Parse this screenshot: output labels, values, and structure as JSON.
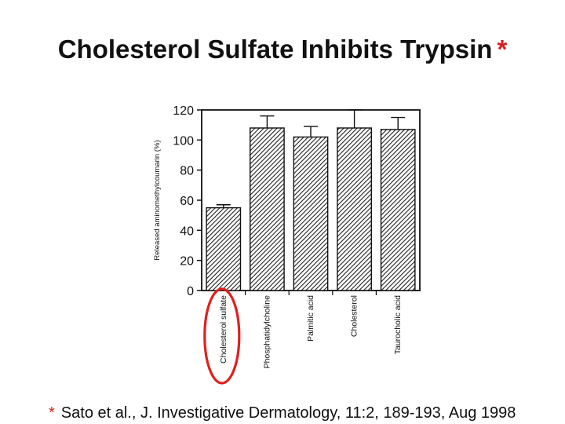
{
  "title": {
    "text": "Cholesterol Sulfate Inhibits Trypsin",
    "marker": "*"
  },
  "footnote": {
    "marker": "*",
    "text": "Sato et al., J. Investigative Dermatology, 11:2, 189-193, Aug 1998"
  },
  "colors": {
    "marker": "#d42020",
    "highlight": "#e02020",
    "text": "#111111"
  },
  "chart_data": {
    "type": "bar",
    "title": "",
    "xlabel": "",
    "ylabel": "Released aminomethylcoumarin (%)",
    "ylim": [
      0,
      120
    ],
    "yticks": [
      0,
      20,
      40,
      60,
      80,
      100,
      120
    ],
    "categories": [
      "Cholesterol sulfate",
      "Phosphatidylcholine",
      "Palmitic acid",
      "Cholesterol",
      "Taurocholic acid"
    ],
    "values": [
      55,
      108,
      102,
      108,
      107
    ],
    "errors": [
      2,
      8,
      7,
      12,
      8
    ],
    "grid": false,
    "bar_fill": "diagonal-hatch",
    "highlighted_category": "Cholesterol sulfate"
  }
}
